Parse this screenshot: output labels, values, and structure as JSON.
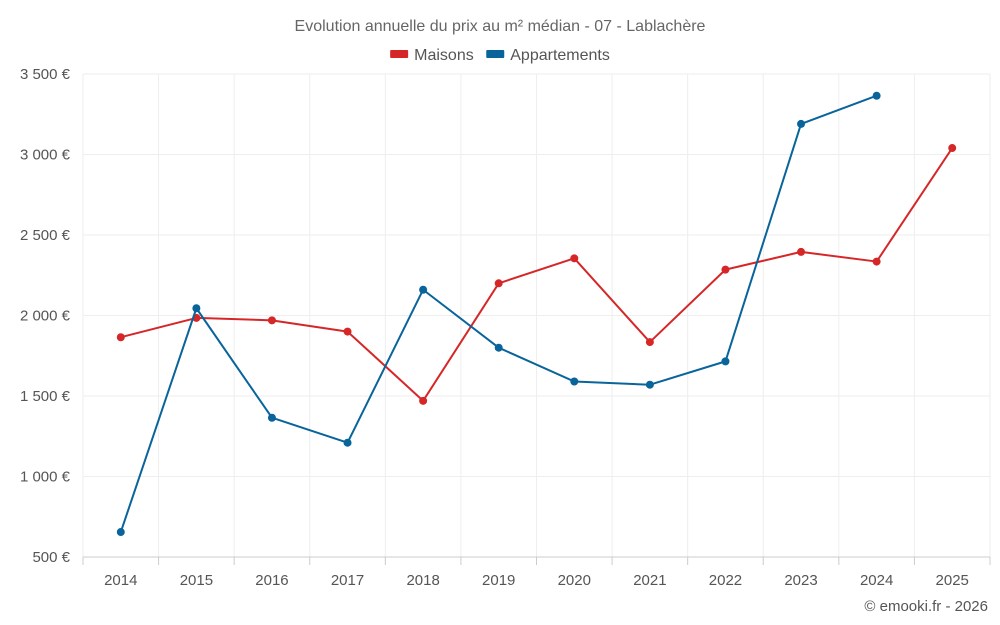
{
  "chart_data": {
    "type": "line",
    "title": "Evolution annuelle du prix au m² médian - 07 - Lablachère",
    "categories": [
      "2014",
      "2015",
      "2016",
      "2017",
      "2018",
      "2019",
      "2020",
      "2021",
      "2022",
      "2023",
      "2024",
      "2025"
    ],
    "series": [
      {
        "name": "Maisons",
        "color": "#d62728",
        "values": [
          1865,
          1985,
          1970,
          1900,
          1470,
          2200,
          2355,
          1835,
          2285,
          2395,
          2335,
          3040
        ]
      },
      {
        "name": "Appartements",
        "color": "#08649b",
        "values": [
          655,
          2045,
          1365,
          1210,
          2160,
          1800,
          1590,
          1570,
          1715,
          3190,
          3365,
          null
        ]
      }
    ],
    "ylim": [
      500,
      3500
    ],
    "yticks": [
      500,
      1000,
      1500,
      2000,
      2500,
      3000,
      3500
    ],
    "ytick_labels": [
      "500 €",
      "1 000 €",
      "1 500 €",
      "2 000 €",
      "2 500 €",
      "3 000 €",
      "3 500 €"
    ],
    "xlabel": "",
    "ylabel": "",
    "grid": true,
    "legend_position": "top-center"
  },
  "credit": "© emooki.fr - 2026"
}
